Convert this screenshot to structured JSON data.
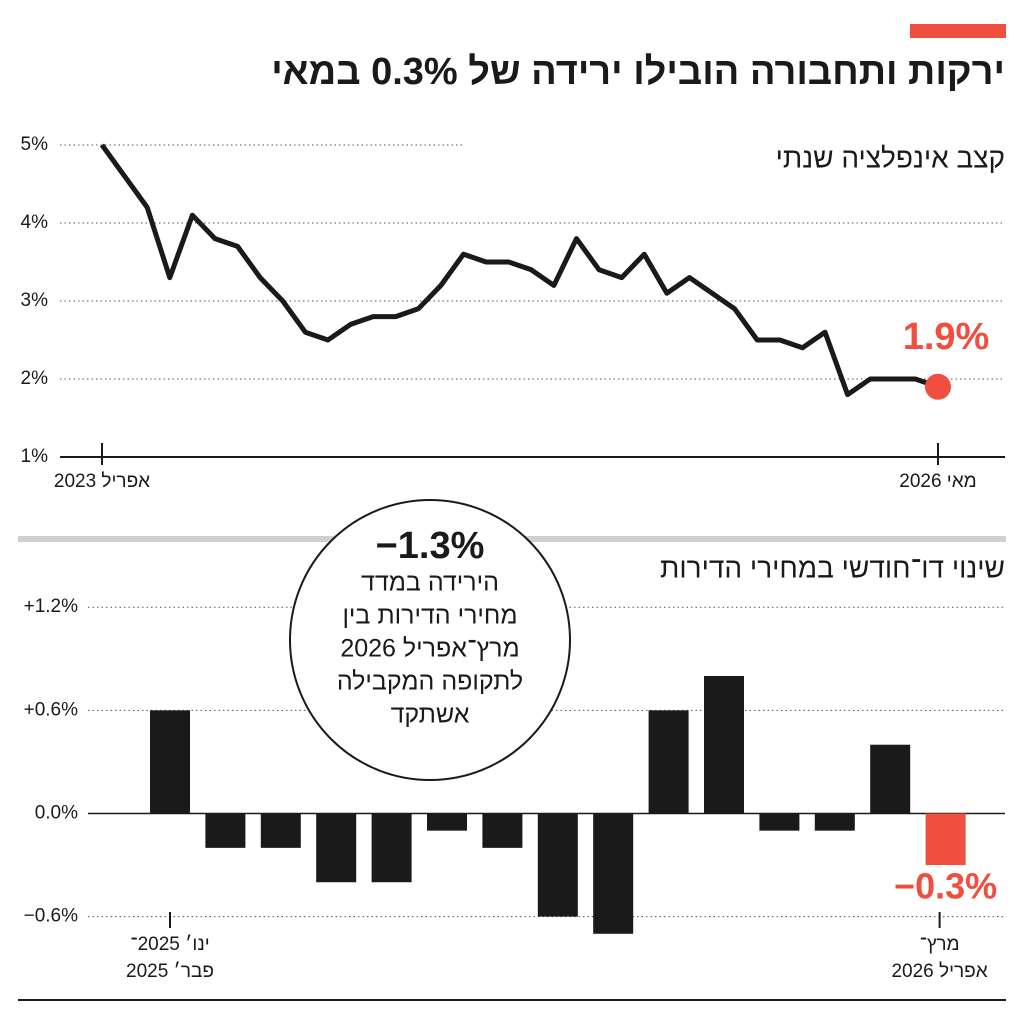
{
  "title": "ירקות ותחבורה הובילו ירידה של 0.3% במאי",
  "chart_data": [
    {
      "type": "line",
      "title": "קצב אינפלציה שנתי",
      "categories": [
        "אפריל 2023",
        null,
        null,
        null,
        null,
        null,
        null,
        null,
        null,
        null,
        null,
        null,
        null,
        null,
        null,
        null,
        null,
        null,
        null,
        null,
        null,
        null,
        null,
        null,
        null,
        null,
        null,
        null,
        null,
        null,
        null,
        null,
        null,
        null,
        null,
        null,
        null,
        "מאי 2026"
      ],
      "values": [
        5.0,
        4.6,
        4.2,
        3.3,
        4.1,
        3.8,
        3.7,
        3.3,
        3.0,
        2.6,
        2.5,
        2.7,
        2.8,
        2.8,
        2.9,
        3.2,
        3.6,
        3.5,
        3.5,
        3.4,
        3.2,
        3.8,
        3.4,
        3.3,
        3.6,
        3.1,
        3.3,
        3.1,
        2.9,
        2.5,
        2.5,
        2.4,
        2.6,
        1.8,
        2.0,
        2.0,
        2.0,
        1.9
      ],
      "value_labels": [
        null,
        null,
        null,
        null,
        null,
        null,
        null,
        null,
        null,
        null,
        null,
        null,
        null,
        null,
        null,
        null,
        null,
        null,
        null,
        null,
        null,
        null,
        null,
        null,
        null,
        null,
        null,
        null,
        null,
        null,
        null,
        null,
        null,
        null,
        null,
        null,
        null,
        "1.9%"
      ],
      "color": "#1a1a1a",
      "highlight_color": "#f04e3e",
      "ylim": [
        1,
        5
      ],
      "yticks": [
        {
          "value": 1,
          "label": "1%"
        },
        {
          "value": 2,
          "label": "2%"
        },
        {
          "value": 3,
          "label": "3%"
        },
        {
          "value": 4,
          "label": "4%"
        },
        {
          "value": 5,
          "label": "5%"
        }
      ],
      "grid": true
    },
    {
      "type": "bar",
      "title": "שינוי דו־חודשי במחירי הדירות",
      "categories": [
        [
          "ינו׳ 2025־",
          "פבר׳ 2025"
        ],
        null,
        null,
        null,
        null,
        null,
        null,
        null,
        null,
        null,
        null,
        null,
        null,
        null,
        [
          "מרץ־",
          "אפריל 2026"
        ]
      ],
      "values": [
        0.6,
        -0.2,
        -0.2,
        -0.4,
        -0.4,
        -0.1,
        -0.2,
        -0.6,
        -0.7,
        0.6,
        0.8,
        -0.1,
        -0.1,
        0.4,
        -0.3
      ],
      "value_labels": [
        null,
        null,
        null,
        null,
        null,
        null,
        null,
        null,
        null,
        null,
        null,
        null,
        null,
        null,
        "−0.3%"
      ],
      "colors": [
        "#1a1a1a",
        "#1a1a1a",
        "#1a1a1a",
        "#1a1a1a",
        "#1a1a1a",
        "#1a1a1a",
        "#1a1a1a",
        "#1a1a1a",
        "#1a1a1a",
        "#1a1a1a",
        "#1a1a1a",
        "#1a1a1a",
        "#1a1a1a",
        "#1a1a1a",
        "#f04e3e"
      ],
      "ylim": [
        -0.8,
        1.3
      ],
      "yticks": [
        {
          "value": -0.6,
          "label": "−0.6%"
        },
        {
          "value": 0,
          "label": "0.0%"
        },
        {
          "value": 0.6,
          "label": "+0.6%"
        },
        {
          "value": 1.2,
          "label": "+1.2%"
        }
      ],
      "grid": true,
      "annotation": {
        "headline": "−1.3%",
        "lines": [
          "הירידה במדד",
          "מחירי הדירות בין",
          "מרץ־אפריל 2026",
          "לתקופה המקבילה",
          "אשתקד"
        ]
      }
    }
  ]
}
